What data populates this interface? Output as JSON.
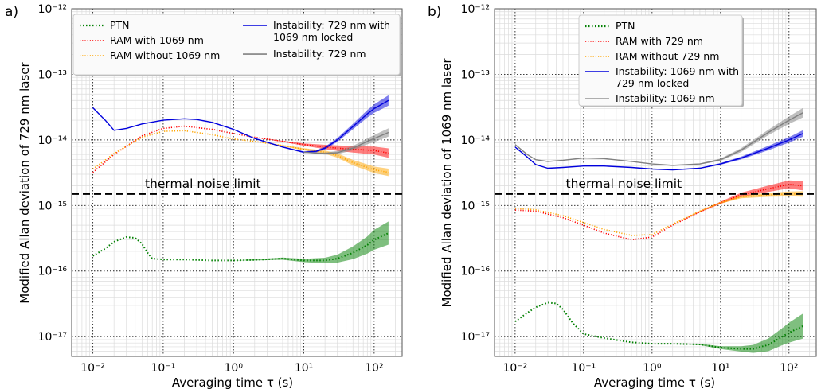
{
  "chart_data": [
    {
      "type": "line",
      "panel_label": "a)",
      "xlabel": "Averaging time τ (s)",
      "ylabel": "Modified Allan deviation of 729 nm laser",
      "xscale": "log",
      "yscale": "log",
      "xlim": [
        0.005,
        250
      ],
      "ylim": [
        5e-18,
        1e-12
      ],
      "x_ticks": [
        {
          "v": 0.01,
          "label": "10⁻²"
        },
        {
          "v": 0.1,
          "label": "10⁻¹"
        },
        {
          "v": 1,
          "label": "10⁰"
        },
        {
          "v": 10,
          "label": "10¹"
        },
        {
          "v": 100,
          "label": "10²"
        }
      ],
      "y_ticks": [
        {
          "v": 1e-17,
          "label": "10⁻¹⁷"
        },
        {
          "v": 1e-16,
          "label": "10⁻¹⁶"
        },
        {
          "v": 1e-15,
          "label": "10⁻¹⁵"
        },
        {
          "v": 1e-14,
          "label": "10⁻¹⁴"
        },
        {
          "v": 1e-13,
          "label": "10⁻¹³"
        },
        {
          "v": 1e-12,
          "label": "10⁻¹²"
        }
      ],
      "grid": true,
      "legend_position": "top",
      "threshold": {
        "value": 1.5e-15,
        "label": "thermal noise limit"
      },
      "series": [
        {
          "name": "PTN",
          "color": "#008000",
          "style": "dotted",
          "x": [
            0.01,
            0.015,
            0.02,
            0.03,
            0.04,
            0.05,
            0.06,
            0.07,
            0.1,
            0.2,
            0.5,
            1,
            2,
            5,
            10,
            20,
            30,
            50,
            80,
            100,
            160
          ],
          "y": [
            1.7e-16,
            2.2e-16,
            2.8e-16,
            3.3e-16,
            3.2e-16,
            2.6e-16,
            1.9e-16,
            1.55e-16,
            1.5e-16,
            1.5e-16,
            1.45e-16,
            1.45e-16,
            1.48e-16,
            1.55e-16,
            1.45e-16,
            1.45e-16,
            1.55e-16,
            1.9e-16,
            2.5e-16,
            3e-16,
            3.8e-16
          ],
          "band_factor": [
            1.0,
            1.0,
            1.0,
            1.0,
            1.0,
            1.0,
            1.0,
            1.0,
            1.0,
            1.0,
            1.0,
            1.0,
            1.02,
            1.04,
            1.06,
            1.1,
            1.15,
            1.25,
            1.35,
            1.42,
            1.5
          ]
        },
        {
          "name": "RAM with 1069 nm",
          "color": "#ff0000",
          "style": "dotted",
          "x": [
            0.01,
            0.02,
            0.05,
            0.1,
            0.2,
            0.5,
            1,
            2,
            5,
            10,
            20,
            30,
            50,
            100,
            160
          ],
          "y": [
            3.2e-15,
            6e-15,
            1.15e-14,
            1.5e-14,
            1.62e-14,
            1.45e-14,
            1.25e-14,
            1.1e-14,
            9.5e-15,
            8.5e-15,
            7.8e-15,
            7.5e-15,
            7.2e-15,
            6.9e-15,
            6.3e-15
          ],
          "band_factor": [
            1.0,
            1.0,
            1.0,
            1.0,
            1.0,
            1.0,
            1.0,
            1.0,
            1.02,
            1.04,
            1.08,
            1.1,
            1.12,
            1.15,
            1.18
          ]
        },
        {
          "name": "RAM without 1069 nm",
          "color": "#ffa500",
          "style": "dotted",
          "x": [
            0.01,
            0.02,
            0.05,
            0.1,
            0.2,
            0.5,
            1,
            2,
            5,
            10,
            20,
            30,
            50,
            100,
            160
          ],
          "y": [
            3.6e-15,
            6.2e-15,
            1.1e-14,
            1.35e-14,
            1.38e-14,
            1.2e-14,
            1.03e-14,
            9.5e-15,
            8.2e-15,
            7.2e-15,
            6.5e-15,
            5.8e-15,
            4.5e-15,
            3.5e-15,
            3.2e-15
          ],
          "band_factor": [
            1.0,
            1.0,
            1.0,
            1.0,
            1.0,
            1.0,
            1.0,
            1.0,
            1.02,
            1.04,
            1.06,
            1.08,
            1.1,
            1.12,
            1.14
          ]
        },
        {
          "name": "Instability: 729 nm with 1069 nm locked",
          "color": "#0000dd",
          "style": "solid",
          "x": [
            0.01,
            0.015,
            0.02,
            0.03,
            0.05,
            0.1,
            0.2,
            0.3,
            0.5,
            1,
            2,
            5,
            10,
            15,
            20,
            30,
            50,
            80,
            100,
            160
          ],
          "y": [
            3.1e-14,
            2e-14,
            1.4e-14,
            1.5e-14,
            1.75e-14,
            2e-14,
            2.1e-14,
            2.05e-14,
            1.85e-14,
            1.45e-14,
            1.05e-14,
            7.8e-15,
            6.5e-15,
            6.7e-15,
            7.5e-15,
            1e-14,
            1.6e-14,
            2.5e-14,
            3e-14,
            4e-14
          ],
          "band_factor": [
            1.0,
            1.0,
            1.0,
            1.0,
            1.0,
            1.0,
            1.0,
            1.0,
            1.0,
            1.0,
            1.0,
            1.02,
            1.03,
            1.04,
            1.05,
            1.07,
            1.1,
            1.14,
            1.16,
            1.2
          ]
        },
        {
          "name": "Instability: 729 nm",
          "color": "#808080",
          "style": "solid",
          "x": [
            10,
            15,
            20,
            30,
            50,
            80,
            100,
            160
          ],
          "y": [
            6.5e-15,
            6.3e-15,
            6.2e-15,
            6.4e-15,
            7.5e-15,
            9.5e-15,
            1.05e-14,
            1.3e-14
          ],
          "band_factor": [
            1.0,
            1.02,
            1.04,
            1.06,
            1.08,
            1.11,
            1.13,
            1.16
          ]
        }
      ],
      "legend": {
        "left": [
          "PTN",
          "RAM with 1069 nm",
          "RAM without 1069 nm"
        ],
        "right": [
          [
            "Instability: 729 nm with",
            "1069 nm locked"
          ],
          [
            "Instability: 729 nm"
          ]
        ]
      }
    },
    {
      "type": "line",
      "panel_label": "b)",
      "xlabel": "Averaging time τ (s)",
      "ylabel": "Modified Allan deviation of 1069 nm laser",
      "xscale": "log",
      "yscale": "log",
      "xlim": [
        0.005,
        250
      ],
      "ylim": [
        5e-18,
        1e-12
      ],
      "x_ticks": [
        {
          "v": 0.01,
          "label": "10⁻²"
        },
        {
          "v": 0.1,
          "label": "10⁻¹"
        },
        {
          "v": 1,
          "label": "10⁰"
        },
        {
          "v": 10,
          "label": "10¹"
        },
        {
          "v": 100,
          "label": "10²"
        }
      ],
      "y_ticks": [
        {
          "v": 1e-17,
          "label": "10⁻¹⁷"
        },
        {
          "v": 1e-16,
          "label": "10⁻¹⁶"
        },
        {
          "v": 1e-15,
          "label": "10⁻¹⁵"
        },
        {
          "v": 1e-14,
          "label": "10⁻¹⁴"
        },
        {
          "v": 1e-13,
          "label": "10⁻¹³"
        },
        {
          "v": 1e-12,
          "label": "10⁻¹²"
        }
      ],
      "grid": true,
      "legend_position": "top",
      "threshold": {
        "value": 1.5e-15,
        "label": "thermal noise limit"
      },
      "series": [
        {
          "name": "PTN",
          "color": "#008000",
          "style": "dotted",
          "x": [
            0.01,
            0.015,
            0.02,
            0.03,
            0.04,
            0.05,
            0.07,
            0.1,
            0.2,
            0.5,
            1,
            2,
            5,
            10,
            20,
            30,
            50,
            80,
            100,
            160
          ],
          "y": [
            1.7e-17,
            2.3e-17,
            2.8e-17,
            3.3e-17,
            3.2e-17,
            2.6e-17,
            1.6e-17,
            1.1e-17,
            9.5e-18,
            8.2e-18,
            7.8e-18,
            7.8e-18,
            7.6e-18,
            6.8e-18,
            6.5e-18,
            6.5e-18,
            7.5e-18,
            1e-17,
            1.15e-17,
            1.45e-17
          ],
          "band_factor": [
            1.0,
            1.0,
            1.0,
            1.0,
            1.0,
            1.0,
            1.0,
            1.0,
            1.0,
            1.0,
            1.0,
            1.0,
            1.02,
            1.05,
            1.1,
            1.15,
            1.25,
            1.35,
            1.42,
            1.55
          ]
        },
        {
          "name": "RAM with 729 nm",
          "color": "#ff0000",
          "style": "dotted",
          "x": [
            0.01,
            0.02,
            0.05,
            0.1,
            0.2,
            0.5,
            1,
            2,
            5,
            10,
            20,
            50,
            100,
            160
          ],
          "y": [
            8.5e-16,
            8.2e-16,
            6.5e-16,
            5e-16,
            3.8e-16,
            3e-16,
            3.3e-16,
            5e-16,
            8e-16,
            1.1e-15,
            1.45e-15,
            1.8e-15,
            2.1e-15,
            2e-15
          ],
          "band_factor": [
            1.0,
            1.0,
            1.0,
            1.0,
            1.0,
            1.0,
            1.0,
            1.0,
            1.02,
            1.04,
            1.08,
            1.12,
            1.15,
            1.18
          ]
        },
        {
          "name": "RAM without 729 nm",
          "color": "#ffa500",
          "style": "dotted",
          "x": [
            0.01,
            0.02,
            0.05,
            0.1,
            0.2,
            0.5,
            1,
            2,
            5,
            10,
            20,
            50,
            100,
            160
          ],
          "y": [
            9e-16,
            8.6e-16,
            7e-16,
            5.5e-16,
            4.3e-16,
            3.5e-16,
            3.6e-16,
            5.2e-16,
            8.2e-16,
            1.1e-15,
            1.35e-15,
            1.45e-15,
            1.5e-15,
            1.5e-15
          ],
          "band_factor": [
            1.0,
            1.0,
            1.0,
            1.0,
            1.0,
            1.0,
            1.0,
            1.0,
            1.02,
            1.03,
            1.05,
            1.07,
            1.09,
            1.1
          ]
        },
        {
          "name": "Instability: 1069 nm with 729 nm locked",
          "color": "#0000dd",
          "style": "solid",
          "x": [
            0.01,
            0.015,
            0.02,
            0.03,
            0.05,
            0.1,
            0.2,
            0.5,
            1,
            2,
            5,
            10,
            20,
            50,
            100,
            160
          ],
          "y": [
            7.8e-15,
            5.5e-15,
            4.2e-15,
            3.7e-15,
            3.8e-15,
            4e-15,
            4e-15,
            3.8e-15,
            3.6e-15,
            3.5e-15,
            3.7e-15,
            4.3e-15,
            5.3e-15,
            7.5e-15,
            1e-14,
            1.25e-14
          ],
          "band_factor": [
            1.0,
            1.0,
            1.0,
            1.0,
            1.0,
            1.0,
            1.0,
            1.0,
            1.0,
            1.0,
            1.02,
            1.03,
            1.05,
            1.08,
            1.1,
            1.12
          ]
        },
        {
          "name": "Instability: 1069 nm",
          "color": "#808080",
          "style": "solid",
          "x": [
            0.01,
            0.015,
            0.02,
            0.03,
            0.05,
            0.1,
            0.2,
            0.5,
            1,
            2,
            5,
            10,
            20,
            50,
            100,
            160
          ],
          "y": [
            8.5e-15,
            6e-15,
            5e-15,
            4.7e-15,
            4.9e-15,
            5.3e-15,
            5.2e-15,
            4.7e-15,
            4.3e-15,
            4.1e-15,
            4.3e-15,
            5e-15,
            7e-15,
            1.3e-14,
            2e-14,
            2.6e-14
          ],
          "band_factor": [
            1.0,
            1.0,
            1.0,
            1.0,
            1.0,
            1.0,
            1.0,
            1.0,
            1.0,
            1.0,
            1.02,
            1.04,
            1.07,
            1.1,
            1.14,
            1.18
          ]
        }
      ],
      "legend": {
        "left": [
          "PTN",
          "RAM with 729 nm",
          "RAM without 729 nm",
          [
            "Instability: 1069 nm with",
            "729 nm locked"
          ],
          "Instability: 1069 nm"
        ],
        "right": []
      }
    }
  ]
}
